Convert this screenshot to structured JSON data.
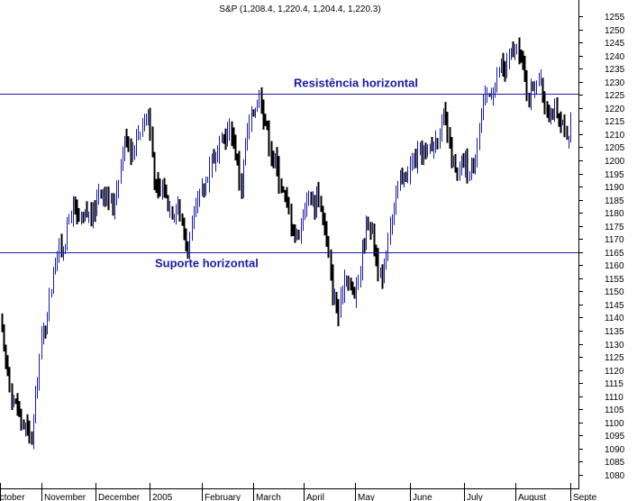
{
  "chart_data": {
    "type": "candlestick",
    "title": "S&P (1,208.4, 1,220.4, 1,204.4, 1,220.3)",
    "xlabel": "",
    "ylabel": "",
    "ylim": [
      1076,
      1259
    ],
    "yticks": [
      1080,
      1085,
      1090,
      1095,
      1100,
      1105,
      1110,
      1115,
      1120,
      1125,
      1130,
      1135,
      1140,
      1145,
      1150,
      1155,
      1160,
      1165,
      1170,
      1175,
      1180,
      1185,
      1190,
      1195,
      1200,
      1205,
      1210,
      1215,
      1220,
      1225,
      1230,
      1235,
      1240,
      1245,
      1250,
      1255
    ],
    "y_axis_side": "right",
    "grid": false,
    "months": [
      "October",
      "November",
      "December",
      "2005",
      "February",
      "March",
      "April",
      "May",
      "June",
      "July",
      "August",
      "Septe"
    ],
    "horizontal_lines": [
      {
        "label": "Resistência horizontal",
        "value": 1225.5,
        "color": "#1a1aa8"
      },
      {
        "label": "Suporte horizontal",
        "value": 1165,
        "color": "#1a1aa8"
      }
    ],
    "price_path": [
      [
        0,
        1140
      ],
      [
        3,
        1128
      ],
      [
        8,
        1120
      ],
      [
        13,
        1110
      ],
      [
        18,
        1106
      ],
      [
        22,
        1102
      ],
      [
        27,
        1098
      ],
      [
        31,
        1096
      ],
      [
        34,
        1093
      ],
      [
        38,
        1105
      ],
      [
        42,
        1122
      ],
      [
        46,
        1132
      ],
      [
        50,
        1138
      ],
      [
        54,
        1147
      ],
      [
        57,
        1153
      ],
      [
        60,
        1162
      ],
      [
        64,
        1165
      ],
      [
        68,
        1167
      ],
      [
        72,
        1170
      ],
      [
        76,
        1177
      ],
      [
        80,
        1183
      ],
      [
        85,
        1178
      ],
      [
        90,
        1175
      ],
      [
        95,
        1180
      ],
      [
        100,
        1178
      ],
      [
        105,
        1182
      ],
      [
        110,
        1190
      ],
      [
        115,
        1188
      ],
      [
        120,
        1185
      ],
      [
        125,
        1182
      ],
      [
        130,
        1192
      ],
      [
        135,
        1202
      ],
      [
        140,
        1210
      ],
      [
        145,
        1203
      ],
      [
        150,
        1208
      ],
      [
        155,
        1212
      ],
      [
        160,
        1216
      ],
      [
        164,
        1218
      ],
      [
        168,
        1205
      ],
      [
        172,
        1190
      ],
      [
        176,
        1186
      ],
      [
        180,
        1190
      ],
      [
        184,
        1186
      ],
      [
        188,
        1183
      ],
      [
        192,
        1180
      ],
      [
        196,
        1186
      ],
      [
        200,
        1178
      ],
      [
        204,
        1172
      ],
      [
        208,
        1166
      ],
      [
        212,
        1172
      ],
      [
        216,
        1180
      ],
      [
        220,
        1184
      ],
      [
        224,
        1188
      ],
      [
        228,
        1192
      ],
      [
        232,
        1197
      ],
      [
        236,
        1203
      ],
      [
        240,
        1200
      ],
      [
        244,
        1206
      ],
      [
        248,
        1208
      ],
      [
        252,
        1210
      ],
      [
        256,
        1212
      ],
      [
        260,
        1206
      ],
      [
        264,
        1196
      ],
      [
        268,
        1190
      ],
      [
        272,
        1206
      ],
      [
        276,
        1212
      ],
      [
        280,
        1218
      ],
      [
        284,
        1222
      ],
      [
        288,
        1226
      ],
      [
        292,
        1218
      ],
      [
        296,
        1212
      ],
      [
        300,
        1204
      ],
      [
        304,
        1200
      ],
      [
        308,
        1196
      ],
      [
        312,
        1190
      ],
      [
        316,
        1186
      ],
      [
        320,
        1180
      ],
      [
        324,
        1176
      ],
      [
        328,
        1170
      ],
      [
        332,
        1174
      ],
      [
        336,
        1180
      ],
      [
        340,
        1184
      ],
      [
        344,
        1188
      ],
      [
        348,
        1182
      ],
      [
        352,
        1188
      ],
      [
        356,
        1182
      ],
      [
        360,
        1174
      ],
      [
        364,
        1164
      ],
      [
        368,
        1150
      ],
      [
        372,
        1146
      ],
      [
        376,
        1140
      ],
      [
        380,
        1152
      ],
      [
        384,
        1158
      ],
      [
        388,
        1152
      ],
      [
        392,
        1148
      ],
      [
        396,
        1152
      ],
      [
        400,
        1160
      ],
      [
        404,
        1170
      ],
      [
        408,
        1178
      ],
      [
        412,
        1174
      ],
      [
        416,
        1166
      ],
      [
        420,
        1158
      ],
      [
        424,
        1152
      ],
      [
        428,
        1164
      ],
      [
        432,
        1176
      ],
      [
        436,
        1182
      ],
      [
        440,
        1188
      ],
      [
        444,
        1192
      ],
      [
        448,
        1193
      ],
      [
        452,
        1196
      ],
      [
        456,
        1198
      ],
      [
        460,
        1200
      ],
      [
        464,
        1202
      ],
      [
        468,
        1204
      ],
      [
        472,
        1202
      ],
      [
        476,
        1204
      ],
      [
        480,
        1206
      ],
      [
        484,
        1208
      ],
      [
        488,
        1212
      ],
      [
        492,
        1216
      ],
      [
        496,
        1210
      ],
      [
        500,
        1202
      ],
      [
        504,
        1196
      ],
      [
        508,
        1192
      ],
      [
        512,
        1198
      ],
      [
        516,
        1200
      ],
      [
        520,
        1194
      ],
      [
        524,
        1196
      ],
      [
        528,
        1206
      ],
      [
        532,
        1214
      ],
      [
        536,
        1220
      ],
      [
        540,
        1224
      ],
      [
        544,
        1226
      ],
      [
        548,
        1228
      ],
      [
        552,
        1232
      ],
      [
        556,
        1236
      ],
      [
        560,
        1234
      ],
      [
        564,
        1238
      ],
      [
        568,
        1242
      ],
      [
        572,
        1240
      ],
      [
        576,
        1242
      ],
      [
        580,
        1236
      ],
      [
        584,
        1228
      ],
      [
        588,
        1224
      ],
      [
        592,
        1230
      ],
      [
        596,
        1232
      ],
      [
        600,
        1228
      ],
      [
        604,
        1222
      ],
      [
        608,
        1218
      ],
      [
        612,
        1220
      ],
      [
        616,
        1217
      ],
      [
        620,
        1214
      ],
      [
        624,
        1212
      ],
      [
        628,
        1206
      ],
      [
        632,
        1210
      ],
      [
        634,
        1220
      ]
    ]
  }
}
